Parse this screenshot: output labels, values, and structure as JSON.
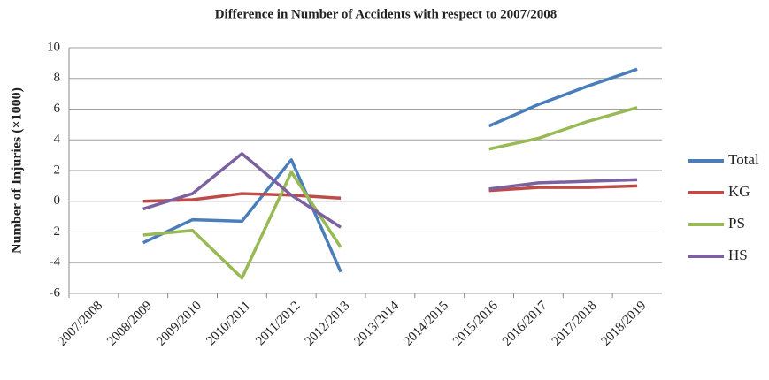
{
  "chart_data": {
    "type": "line",
    "title": "Difference in Number of Accidents with respect to 2007/2008",
    "y_label": "Number of Injuries (×1000)",
    "categories": [
      "2007/2008",
      "2008/2009",
      "2009/2010",
      "2010/2011",
      "2011/2012",
      "2012/2013",
      "2013/2014",
      "2014/2015",
      "2015/2016",
      "2016/2017",
      "2017/2018",
      "2018/2019"
    ],
    "series": [
      {
        "name": "Total",
        "color": "#4a7ebb",
        "values": [
          null,
          -2.7,
          -1.2,
          -1.3,
          2.7,
          -4.6,
          null,
          null,
          4.9,
          6.3,
          7.5,
          8.6
        ]
      },
      {
        "name": "KG",
        "color": "#be4b48",
        "values": [
          null,
          0.0,
          0.1,
          0.5,
          0.4,
          0.2,
          null,
          null,
          0.7,
          0.9,
          0.9,
          1.0
        ]
      },
      {
        "name": "PS",
        "color": "#98b954",
        "values": [
          null,
          -2.2,
          -1.9,
          -5.0,
          1.9,
          -3.0,
          null,
          null,
          3.4,
          4.1,
          5.2,
          6.1
        ]
      },
      {
        "name": "HS",
        "color": "#7d60a0",
        "values": [
          null,
          -0.5,
          0.5,
          3.1,
          0.4,
          -1.7,
          null,
          null,
          0.8,
          1.2,
          1.3,
          1.4
        ]
      }
    ],
    "ylim": [
      -6,
      10
    ],
    "yticks": [
      -6,
      -4,
      -2,
      0,
      2,
      4,
      6,
      8,
      10
    ],
    "grid": true,
    "legend": "right"
  }
}
